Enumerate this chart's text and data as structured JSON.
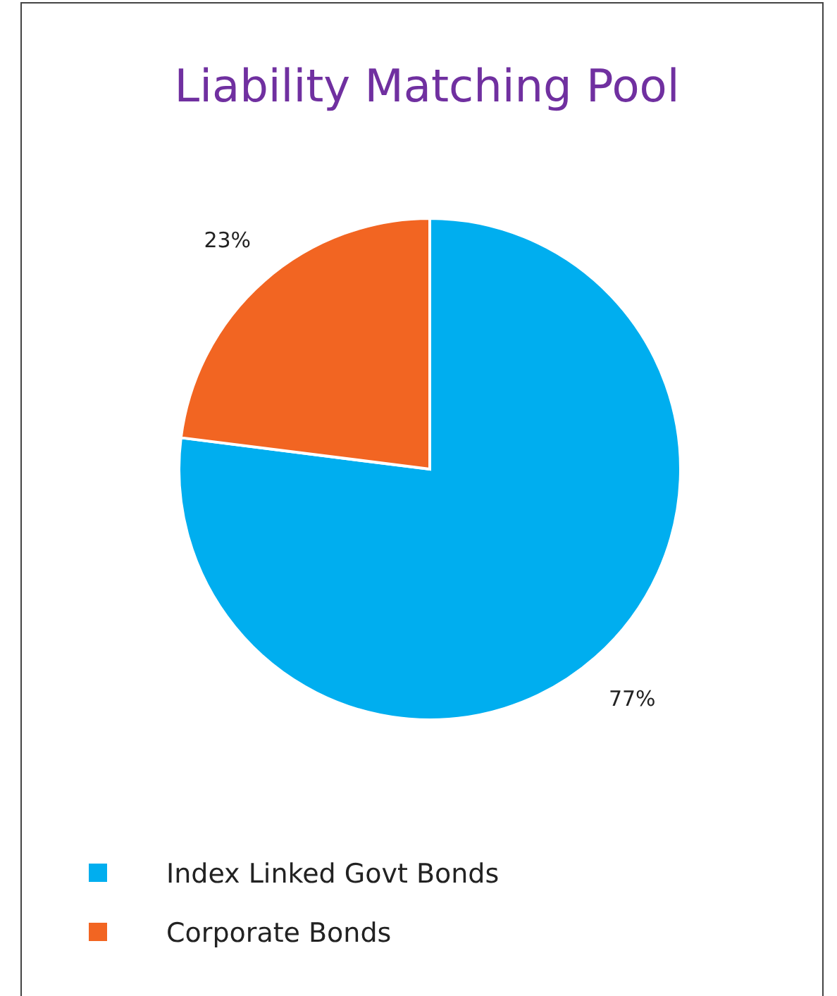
{
  "chart_data": {
    "type": "pie",
    "title": "Liability Matching Pool",
    "categories": [
      "Index Linked Govt Bonds",
      "Corporate Bonds"
    ],
    "values": [
      77,
      23
    ],
    "colors": [
      "#00aeef",
      "#f26522"
    ],
    "value_labels": [
      "77%",
      "23%"
    ],
    "legend": "bottom left"
  }
}
